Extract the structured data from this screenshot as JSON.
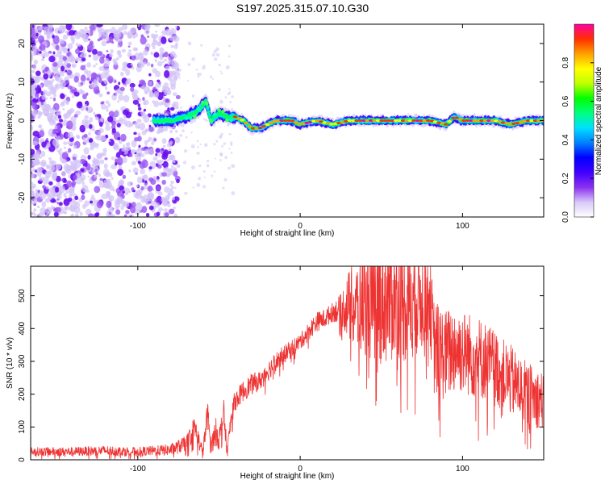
{
  "title": "S197.2025.315.07.10.G30",
  "chart_data": [
    {
      "type": "heatmap",
      "xlabel": "Height of straight line (km)",
      "ylabel": "Frequency (Hz)",
      "xlim": [
        -166,
        150
      ],
      "ylim": [
        -25,
        25
      ],
      "xticks": [
        -100,
        0,
        100
      ],
      "yticks": [
        -20,
        -10,
        0,
        10,
        20
      ],
      "xtick_labels": [
        "-100",
        "0",
        "100"
      ],
      "ytick_labels": [
        "-20",
        "-10",
        "0",
        "10",
        "20"
      ],
      "colorbar": {
        "label": "Normalized spectral amplitude",
        "range": [
          0,
          1
        ],
        "ticks": [
          0,
          0.2,
          0.4,
          0.6,
          0.8
        ],
        "tick_labels": [
          "0.0",
          "0.2",
          "0.4",
          "0.6",
          "0.8"
        ],
        "colors": [
          "#ffffff",
          "#d8c8f8",
          "#8a30f0",
          "#4000ff",
          "#0000ff",
          "#0080ff",
          "#00e0ff",
          "#00ff80",
          "#00ff00",
          "#c0ff00",
          "#ffff00",
          "#ffa000",
          "#ff3000",
          "#ff00a0"
        ]
      },
      "noise_region": {
        "x": [
          -166,
          -75
        ],
        "y": [
          -25,
          25
        ]
      },
      "ridge": {
        "x": [
          -90,
          -80,
          -70,
          -65,
          -62,
          -58,
          -55,
          -50,
          -45,
          -40,
          -35,
          -30,
          -25,
          -20,
          -15,
          -10,
          -5,
          0,
          10,
          20,
          30,
          40,
          50,
          60,
          70,
          80,
          90,
          95,
          100,
          110,
          120,
          130,
          140,
          150
        ],
        "y": [
          0,
          0,
          1,
          2,
          3,
          5,
          0,
          2,
          1,
          1,
          0,
          -2,
          -2,
          -1,
          0,
          0,
          0,
          -1,
          0,
          -1,
          0,
          0,
          0,
          0,
          0,
          0,
          -1,
          1,
          0,
          0,
          0,
          -1,
          0,
          0
        ]
      }
    },
    {
      "type": "line",
      "xlabel": "Height of straight line (km)",
      "ylabel": "SNR (10 * v/v)",
      "xlim": [
        -166,
        150
      ],
      "ylim": [
        0,
        590
      ],
      "xticks": [
        -100,
        0,
        100
      ],
      "yticks": [
        0,
        100,
        200,
        300,
        400,
        500
      ],
      "xtick_labels": [
        "-100",
        "0",
        "100"
      ],
      "ytick_labels": [
        "0",
        "100",
        "200",
        "300",
        "400",
        "500"
      ],
      "color": "#ee3333",
      "series": [
        {
          "name": "SNR",
          "x": [
            -166,
            -140,
            -120,
            -100,
            -80,
            -70,
            -65,
            -60,
            -57,
            -55,
            -52,
            -50,
            -47,
            -45,
            -42,
            -40,
            -35,
            -30,
            -25,
            -20,
            -15,
            -10,
            -5,
            0,
            5,
            10,
            15,
            20,
            25,
            30,
            35,
            40,
            45,
            50,
            55,
            60,
            65,
            70,
            75,
            80,
            82,
            85,
            90,
            95,
            100,
            105,
            110,
            115,
            120,
            125,
            130,
            135,
            140,
            145,
            150
          ],
          "values": [
            25,
            25,
            28,
            25,
            30,
            50,
            100,
            20,
            140,
            40,
            90,
            60,
            140,
            20,
            150,
            180,
            210,
            230,
            240,
            270,
            300,
            320,
            340,
            360,
            390,
            420,
            430,
            450,
            460,
            470,
            460,
            480,
            470,
            480,
            490,
            500,
            480,
            490,
            500,
            500,
            350,
            330,
            320,
            340,
            330,
            320,
            310,
            300,
            280,
            260,
            240,
            220,
            200,
            190,
            180
          ],
          "spread": [
            14,
            14,
            16,
            14,
            18,
            25,
            35,
            20,
            45,
            30,
            40,
            35,
            45,
            20,
            40,
            30,
            32,
            32,
            30,
            32,
            30,
            28,
            28,
            25,
            28,
            30,
            30,
            30,
            45,
            110,
            150,
            160,
            180,
            190,
            200,
            190,
            190,
            180,
            170,
            150,
            150,
            150,
            140,
            140,
            130,
            130,
            130,
            120,
            120,
            110,
            110,
            100,
            100,
            90,
            90
          ]
        }
      ]
    }
  ]
}
